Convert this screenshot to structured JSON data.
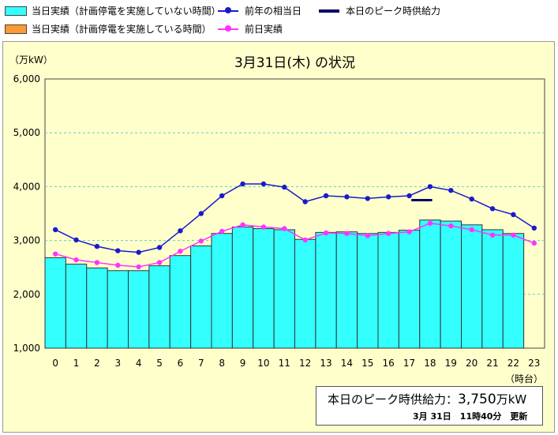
{
  "legend": {
    "today_normal": "当日実績（計画停電を実施していない時間）",
    "today_planned": "当日実績（計画停電を実施している時間）",
    "last_year": "前年の相当日",
    "yesterday": "前日実績",
    "peak_supply": "本日のピーク時供給力"
  },
  "colors": {
    "today_normal": "#33ffff",
    "today_planned": "#ff9933",
    "last_year": "#1a1acc",
    "yesterday": "#ff33ff",
    "peak_supply": "#000066",
    "panel_bg": "#ffffcc",
    "plot_bg": "#ffffcc",
    "grid": "#66cccc"
  },
  "chart_data": {
    "type": "bar",
    "title": "3月31日(木) の状況",
    "ylabel": "（万kW）",
    "xlabel": "（時台）",
    "ylim": [
      1000,
      6000
    ],
    "yticks": [
      "1,000",
      "2,000",
      "3,000",
      "4,000",
      "5,000",
      "6,000"
    ],
    "ytick_values": [
      1000,
      2000,
      3000,
      4000,
      5000,
      6000
    ],
    "categories": [
      "0",
      "1",
      "2",
      "3",
      "4",
      "5",
      "6",
      "7",
      "8",
      "9",
      "10",
      "11",
      "12",
      "13",
      "14",
      "15",
      "16",
      "17",
      "18",
      "19",
      "20",
      "21",
      "22",
      "23"
    ],
    "grid": true,
    "series": [
      {
        "name": "当日実績（計画停電を実施していない時間）",
        "type": "bar",
        "values": [
          2680,
          2560,
          2490,
          2440,
          2440,
          2530,
          2720,
          2900,
          3130,
          3250,
          3220,
          3200,
          3020,
          3150,
          3160,
          3130,
          3150,
          3190,
          3380,
          3360,
          3290,
          3200,
          3130,
          null
        ]
      },
      {
        "name": "前年の相当日",
        "type": "line",
        "values": [
          3200,
          3010,
          2890,
          2810,
          2780,
          2870,
          3180,
          3500,
          3830,
          4050,
          4050,
          3990,
          3720,
          3830,
          3810,
          3780,
          3810,
          3830,
          4000,
          3930,
          3770,
          3590,
          3480,
          3230
        ]
      },
      {
        "name": "前日実績",
        "type": "line",
        "values": [
          2750,
          2640,
          2590,
          2540,
          2510,
          2590,
          2800,
          2990,
          3170,
          3290,
          3250,
          3220,
          3010,
          3140,
          3130,
          3090,
          3130,
          3160,
          3320,
          3270,
          3200,
          3100,
          3100,
          2950
        ]
      },
      {
        "name": "本日のピーク時供給力",
        "type": "level",
        "x_range": [
          17.6,
          18.6
        ],
        "value": 3750
      }
    ]
  },
  "peak_info": {
    "label": "本日のピーク時供給力：",
    "value": "3,750",
    "unit": "万kW",
    "updated": "3月 31日　11時40分　更新"
  }
}
